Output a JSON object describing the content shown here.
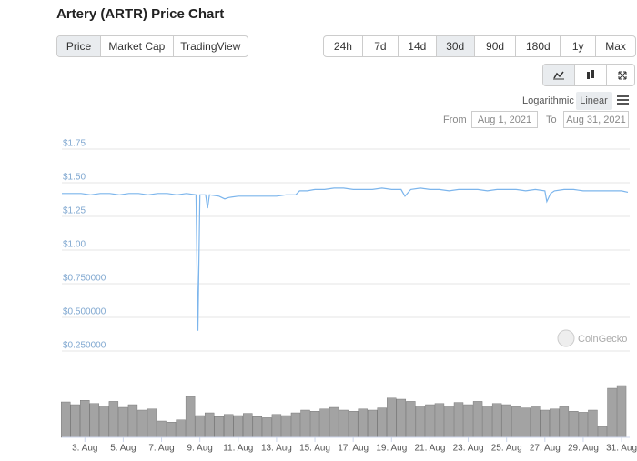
{
  "title": "Artery (ARTR) Price Chart",
  "tabs": [
    "Price",
    "Market Cap",
    "TradingView"
  ],
  "ranges": [
    "24h",
    "7d",
    "14d",
    "30d",
    "90d",
    "180d",
    "1y",
    "Max"
  ],
  "scales": [
    "Logarithmic",
    "Linear"
  ],
  "from_label": "From",
  "from": "Aug 1, 2021",
  "to_label": "To",
  "to": "Aug 31, 2021",
  "watermark": "CoinGecko",
  "chart_data": {
    "type": "line",
    "x": [
      1.8,
      2.3,
      2.8,
      3.3,
      3.8,
      4.3,
      4.8,
      5.3,
      5.8,
      6.3,
      6.8,
      7.3,
      7.8,
      8.3,
      8.8,
      8.9,
      9.0,
      9.3,
      9.4,
      9.5,
      10.0,
      10.3,
      10.5,
      11.0,
      11.5,
      12.0,
      12.5,
      13.0,
      13.5,
      14.0,
      14.2,
      14.6,
      15.0,
      15.5,
      16.0,
      16.5,
      17.0,
      17.5,
      18.0,
      18.5,
      19.0,
      19.5,
      19.7,
      20.0,
      20.5,
      21.0,
      21.5,
      22.0,
      22.5,
      23.0,
      23.5,
      24.0,
      24.5,
      25.0,
      25.5,
      26.0,
      26.5,
      27.0,
      27.1,
      27.3,
      27.5,
      28.0,
      28.5,
      29.0,
      29.5,
      30.0,
      30.5,
      31.0,
      31.33
    ],
    "values": [
      1.42,
      1.42,
      1.42,
      1.41,
      1.42,
      1.42,
      1.41,
      1.42,
      1.42,
      1.41,
      1.42,
      1.42,
      1.41,
      1.42,
      1.41,
      0.4,
      1.41,
      1.41,
      1.31,
      1.41,
      1.4,
      1.38,
      1.39,
      1.4,
      1.4,
      1.4,
      1.4,
      1.4,
      1.41,
      1.41,
      1.44,
      1.44,
      1.45,
      1.45,
      1.46,
      1.46,
      1.45,
      1.45,
      1.45,
      1.46,
      1.45,
      1.45,
      1.4,
      1.45,
      1.46,
      1.45,
      1.45,
      1.44,
      1.45,
      1.45,
      1.45,
      1.44,
      1.45,
      1.45,
      1.45,
      1.44,
      1.45,
      1.44,
      1.36,
      1.42,
      1.44,
      1.45,
      1.45,
      1.44,
      1.44,
      1.44,
      1.44,
      1.44,
      1.43
    ],
    "color": "#7cb5ec",
    "ylim": [
      0.25,
      1.75
    ],
    "yticks": [
      {
        "value": 0.25,
        "label": "$0.250000"
      },
      {
        "value": 0.5,
        "label": "$0.500000"
      },
      {
        "value": 0.75,
        "label": "$0.750000"
      },
      {
        "value": 1.0,
        "label": "$1.00"
      },
      {
        "value": 1.25,
        "label": "$1.25"
      },
      {
        "value": 1.5,
        "label": "$1.50"
      },
      {
        "value": 1.75,
        "label": "$1.75"
      }
    ],
    "xlim": [
      1.8,
      31.33
    ],
    "xticks": [
      {
        "value": 3,
        "label": "3. Aug"
      },
      {
        "value": 5,
        "label": "5. Aug"
      },
      {
        "value": 7,
        "label": "7. Aug"
      },
      {
        "value": 9,
        "label": "9. Aug"
      },
      {
        "value": 11,
        "label": "11. Aug"
      },
      {
        "value": 13,
        "label": "13. Aug"
      },
      {
        "value": 15,
        "label": "15. Aug"
      },
      {
        "value": 17,
        "label": "17. Aug"
      },
      {
        "value": 19,
        "label": "19. Aug"
      },
      {
        "value": 21,
        "label": "21. Aug"
      },
      {
        "value": 23,
        "label": "23. Aug"
      },
      {
        "value": 25,
        "label": "25. Aug"
      },
      {
        "value": 27,
        "label": "27. Aug"
      },
      {
        "value": 29,
        "label": "29. Aug"
      },
      {
        "value": 31,
        "label": "31. Aug"
      }
    ],
    "grid": true,
    "volume": {
      "color": "#a3a3a3",
      "x": [
        2.0,
        2.5,
        3.0,
        3.5,
        4.0,
        4.5,
        5.0,
        5.5,
        6.0,
        6.5,
        7.0,
        7.5,
        8.0,
        8.5,
        9.0,
        9.5,
        10.0,
        10.5,
        11.0,
        11.5,
        12.0,
        12.5,
        13.0,
        13.5,
        14.0,
        14.5,
        15.0,
        15.5,
        16.0,
        16.5,
        17.0,
        17.5,
        18.0,
        18.5,
        19.0,
        19.5,
        20.0,
        20.5,
        21.0,
        21.5,
        22.0,
        22.5,
        23.0,
        23.5,
        24.0,
        24.5,
        25.0,
        25.5,
        26.0,
        26.5,
        27.0,
        27.5,
        28.0,
        28.5,
        29.0,
        29.5,
        30.0,
        30.5,
        31.0
      ],
      "values": [
        65,
        60,
        68,
        62,
        58,
        66,
        55,
        60,
        50,
        52,
        30,
        28,
        32,
        75,
        40,
        45,
        38,
        42,
        40,
        44,
        38,
        36,
        42,
        40,
        45,
        50,
        48,
        52,
        55,
        50,
        48,
        52,
        50,
        54,
        72,
        70,
        66,
        58,
        60,
        62,
        58,
        64,
        60,
        66,
        58,
        62,
        60,
        56,
        54,
        58,
        50,
        52,
        56,
        48,
        46,
        50,
        20,
        90,
        95
      ],
      "ylim": [
        0,
        100
      ]
    }
  }
}
